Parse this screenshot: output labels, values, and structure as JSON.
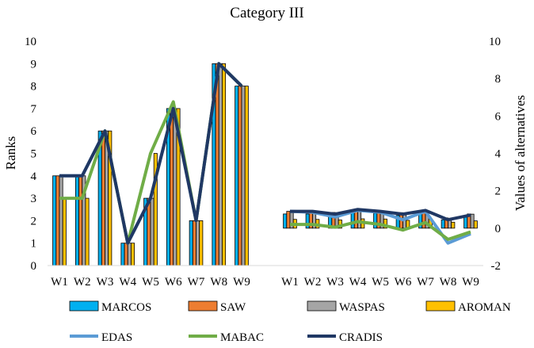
{
  "chart_data": {
    "type": "bar",
    "title": "Category III",
    "ylabel": "Ranks",
    "y2label": "Values of alternatives",
    "ylim": [
      0,
      10
    ],
    "y2lim": [
      -2,
      10
    ],
    "yticks": [
      "0",
      "1",
      "2",
      "3",
      "4",
      "5",
      "6",
      "7",
      "8",
      "9",
      "10"
    ],
    "y2ticks": [
      "-2",
      "0",
      "2",
      "4",
      "6",
      "8",
      "10"
    ],
    "grid": false,
    "legend_position": "bottom",
    "left_panel": {
      "categories": [
        "W1",
        "W2",
        "W3",
        "W4",
        "W5",
        "W6",
        "W7",
        "W8",
        "W9"
      ],
      "bar_series": [
        {
          "name": "MARCOS",
          "color": "#00B0F0",
          "values": [
            4,
            4,
            6,
            1,
            3,
            7,
            2,
            9,
            8
          ]
        },
        {
          "name": "SAW",
          "color": "#ED7D31",
          "values": [
            4,
            4,
            6,
            1,
            3,
            7,
            2,
            9,
            8
          ]
        },
        {
          "name": "WASPAS",
          "color": "#A5A5A5",
          "values": [
            4,
            4,
            6,
            1,
            3,
            7,
            2,
            9,
            8
          ]
        },
        {
          "name": "AROMAN",
          "color": "#FFC000",
          "values": [
            3,
            3,
            6,
            1,
            5,
            7,
            2,
            9,
            8
          ]
        }
      ],
      "line_series": [
        {
          "name": "EDAS",
          "color": "#5B9BD5",
          "values": [
            4,
            4,
            6,
            1,
            3,
            7,
            2,
            9,
            8
          ]
        },
        {
          "name": "MABAC",
          "color": "#70AD47",
          "values": [
            3,
            3,
            6,
            1,
            5,
            7.3,
            2,
            9,
            8
          ]
        },
        {
          "name": "CRADIS",
          "color": "#203864",
          "values": [
            4,
            4,
            6,
            1,
            3,
            7,
            2,
            9,
            8
          ]
        }
      ]
    },
    "right_panel": {
      "categories": [
        "W1",
        "W2",
        "W3",
        "W4",
        "W5",
        "W6",
        "W7",
        "W8",
        "W9"
      ],
      "bar_series": [
        {
          "name": "MARCOS",
          "color": "#00B0F0",
          "values": [
            0.76,
            0.76,
            0.74,
            0.82,
            0.8,
            0.68,
            0.78,
            0.45,
            0.64
          ]
        },
        {
          "name": "SAW",
          "color": "#ED7D31",
          "values": [
            0.9,
            0.9,
            0.84,
            0.95,
            0.93,
            0.83,
            0.93,
            0.55,
            0.76
          ]
        },
        {
          "name": "WASPAS",
          "color": "#A5A5A5",
          "values": [
            0.89,
            0.89,
            0.83,
            0.94,
            0.92,
            0.82,
            0.92,
            0.53,
            0.75
          ]
        },
        {
          "name": "AROMAN",
          "color": "#FFC000",
          "values": [
            0.47,
            0.47,
            0.44,
            0.5,
            0.49,
            0.42,
            0.49,
            0.32,
            0.39
          ]
        }
      ],
      "line_series": [
        {
          "name": "EDAS",
          "color": "#5B9BD5",
          "values": [
            0.9,
            0.85,
            0.6,
            0.95,
            0.85,
            0.45,
            0.9,
            -0.8,
            -0.3
          ]
        },
        {
          "name": "MABAC",
          "color": "#70AD47",
          "values": [
            0.2,
            0.2,
            0.05,
            0.35,
            0.2,
            -0.1,
            0.3,
            -0.6,
            -0.2
          ]
        },
        {
          "name": "CRADIS",
          "color": "#203864",
          "values": [
            0.9,
            0.9,
            0.75,
            1.0,
            0.9,
            0.75,
            0.95,
            0.45,
            0.7
          ]
        }
      ]
    }
  }
}
